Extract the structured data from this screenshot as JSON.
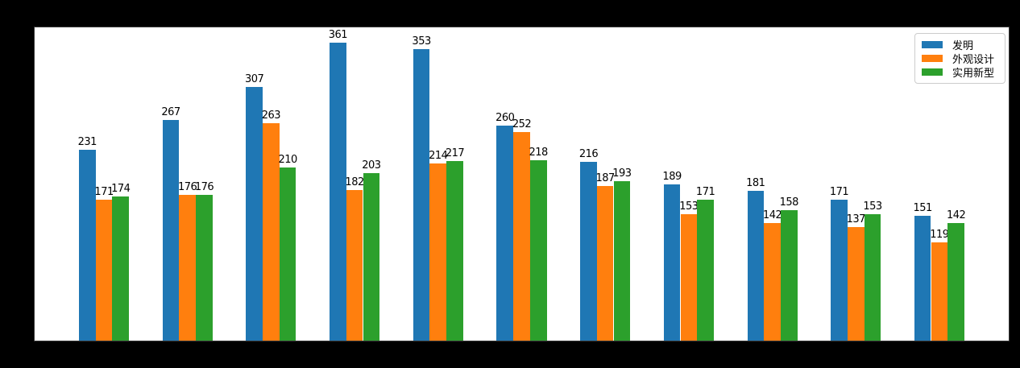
{
  "chart_data": {
    "type": "bar",
    "title": "",
    "groups": 11,
    "x_tick_labels_visible": false,
    "series": [
      {
        "name": "发明",
        "color": "#1f77b4",
        "values": [
          231,
          267,
          307,
          361,
          353,
          260,
          216,
          189,
          181,
          171,
          151
        ]
      },
      {
        "name": "外观设计",
        "color": "#ff7f0e",
        "values": [
          171,
          176,
          263,
          182,
          214,
          252,
          187,
          153,
          142,
          137,
          119
        ]
      },
      {
        "name": "实用新型",
        "color": "#2ca02c",
        "values": [
          174,
          176,
          210,
          203,
          217,
          218,
          193,
          171,
          158,
          153,
          142
        ]
      }
    ],
    "bar_labels": true,
    "xlim": [
      -0.83,
      10.83
    ],
    "ylim": [
      0,
      379
    ],
    "bar_width": 0.2,
    "group_offsets": [
      -0.3,
      -0.1,
      0.1
    ],
    "grid": false,
    "legend_position": "upper right",
    "plot_background": "#ffffff",
    "figure_background": "#000000",
    "label_color": "#000000"
  }
}
